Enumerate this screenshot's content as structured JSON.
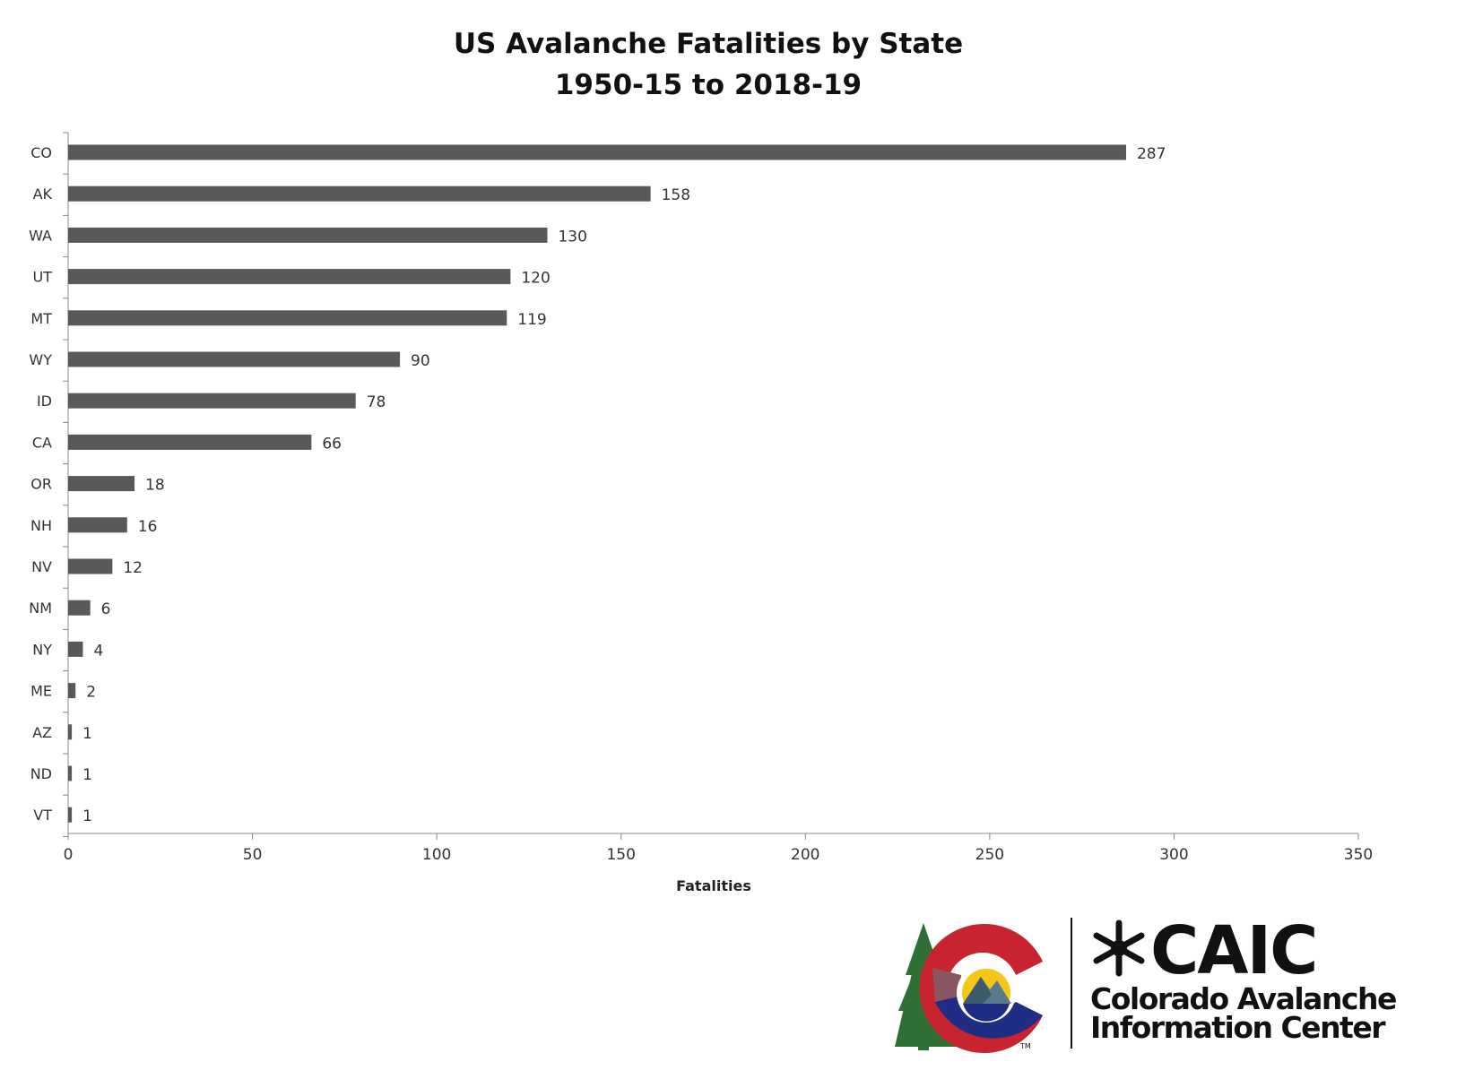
{
  "chart_data": {
    "type": "bar",
    "orientation": "horizontal",
    "title": "US Avalanche Fatalities by State",
    "subtitle": "1950-15 to 2018-19",
    "xlabel": "Fatalities",
    "ylabel": "",
    "xlim": [
      0,
      350
    ],
    "x_ticks": [
      0,
      50,
      100,
      150,
      200,
      250,
      300,
      350
    ],
    "grid": false,
    "legend": "none",
    "bar_color": "#595959",
    "categories": [
      "CO",
      "AK",
      "WA",
      "UT",
      "MT",
      "WY",
      "ID",
      "CA",
      "OR",
      "NH",
      "NV",
      "NM",
      "NY",
      "ME",
      "AZ",
      "ND",
      "VT"
    ],
    "values": [
      287,
      158,
      130,
      120,
      119,
      90,
      78,
      66,
      18,
      16,
      12,
      6,
      4,
      2,
      1,
      1,
      1
    ]
  },
  "logo": {
    "name": "CAIC",
    "line1": "Colorado Avalanche",
    "line2": "Information Center",
    "tm": "TM",
    "colors": {
      "red": "#c8242f",
      "blue": "#1f2d84",
      "green": "#2f6e35",
      "yellow": "#f5c518",
      "slate": "#5a7a8c",
      "mauve": "#8a5561"
    }
  }
}
